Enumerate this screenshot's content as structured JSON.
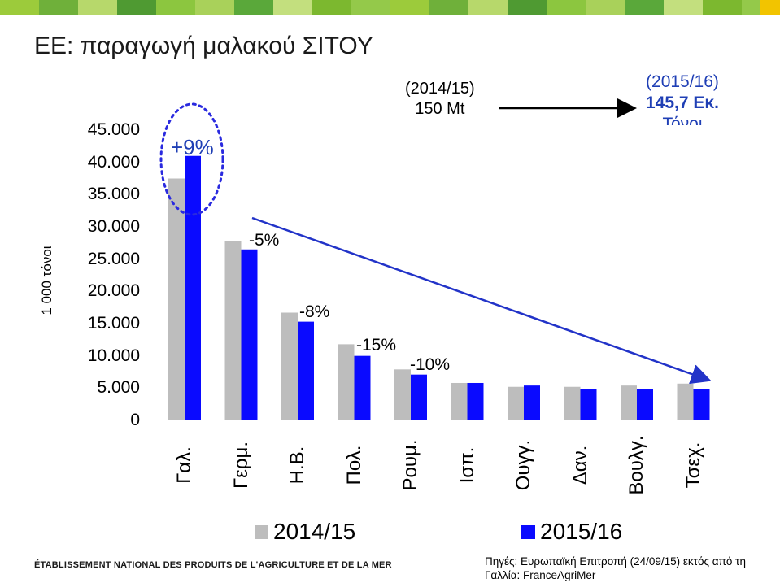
{
  "title": "ΕΕ: παραγωγή μαλακού ΣΙΤΟΥ",
  "colors": {
    "series_2014": "#bdbdbd",
    "series_2015": "#0a0aff",
    "accent_green": "#7cb82f",
    "annotation_blue": "#1f3fb5"
  },
  "chart_data": {
    "type": "bar",
    "ylabel": "1 000 τόνοι",
    "ylim": [
      0,
      45000
    ],
    "yticks": [
      "0",
      "5.000",
      "10.000",
      "15.000",
      "20.000",
      "25.000",
      "30.000",
      "35.000",
      "40.000",
      "45.000"
    ],
    "categories": [
      "Γαλ.",
      "Γερμ.",
      "Η.Β.",
      "Πολ.",
      "Ρουμ.",
      "Ισπ.",
      "Ουγγ.",
      "Δαν.",
      "Βουλγ.",
      "Τσεχ."
    ],
    "series": [
      {
        "name": "2014/15",
        "values": [
          37500,
          27800,
          16700,
          11800,
          7900,
          5800,
          5200,
          5200,
          5400,
          5700
        ]
      },
      {
        "name": "2015/16",
        "values": [
          41000,
          26500,
          15300,
          10000,
          7100,
          5800,
          5400,
          4900,
          4900,
          4800
        ]
      }
    ],
    "pct_changes": [
      "+9%",
      "-5%",
      "-8%",
      "-15%",
      "-10%"
    ],
    "legend": "bottom"
  },
  "notes": {
    "left_line1": "(2014/15)",
    "left_line2": "150 Mt",
    "right_line1": "(2015/16)",
    "right_line2": "145,7 Εκ.",
    "right_line3": "Τόνοι"
  },
  "footer": {
    "org": "ÉTABLISSEMENT NATIONAL DES PRODUITS DE L'AGRICULTURE ET DE LA MER",
    "sources_line1": "Πηγές: Ευρωπαϊκή Επιτροπή (24/09/15) εκτός από τη",
    "sources_line2": "Γαλλία: FranceAgriMer"
  }
}
